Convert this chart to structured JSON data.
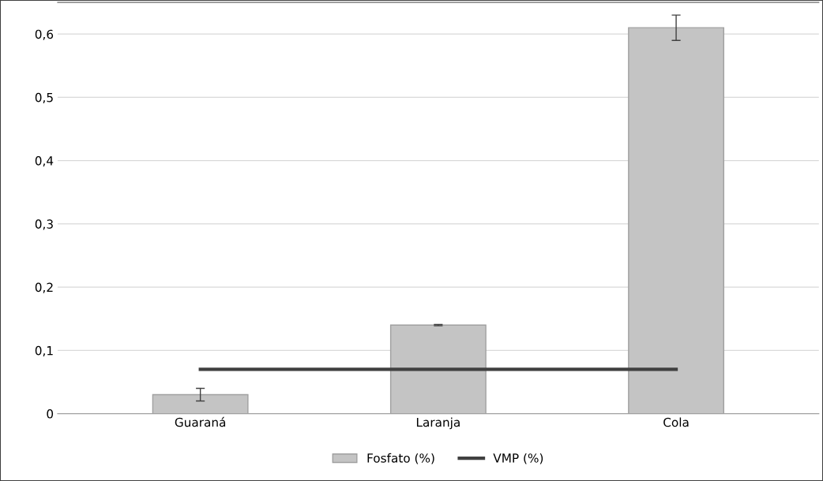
{
  "chart_data": {
    "type": "bar",
    "categories": [
      "Guaraná",
      "Laranja",
      "Cola"
    ],
    "series": [
      {
        "name": "Fosfato (%)",
        "color": "#c4c4c4",
        "values": [
          0.03,
          0.14,
          0.61
        ],
        "errors": [
          0.01,
          0.001,
          0.02
        ]
      },
      {
        "name": "VMP (%)",
        "type": "line",
        "color": "#404040",
        "values": [
          0.07,
          0.07,
          0.07
        ]
      }
    ],
    "ylim": [
      0,
      0.65
    ],
    "yticks": [
      0,
      {
        "value": 0.1,
        "label": "0,1"
      },
      {
        "value": 0.2,
        "label": "0,2"
      },
      {
        "value": 0.3,
        "label": "0,3"
      },
      {
        "value": 0.4,
        "label": "0,4"
      },
      {
        "value": 0.5,
        "label": "0,5"
      },
      {
        "value": 0.6,
        "label": "0,6"
      }
    ],
    "grid": "y",
    "legend": "bottom",
    "marker": "none",
    "line_style": "solid"
  }
}
